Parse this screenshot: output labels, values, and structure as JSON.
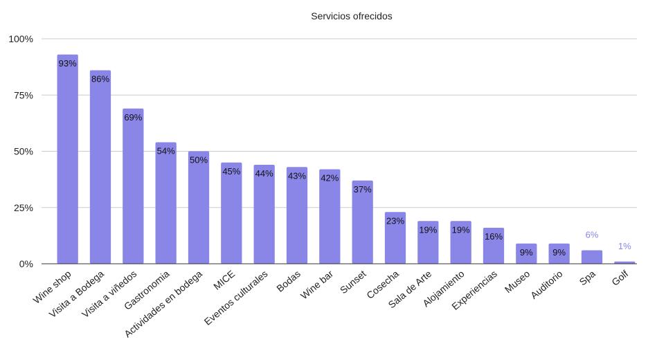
{
  "chart_data": {
    "type": "bar",
    "title": "Servicios ofrecidos",
    "xlabel": "",
    "ylabel": "",
    "categories": [
      "Wine shop",
      "Visita a Bodega",
      "Visita a viñedos",
      "Gastronomia",
      "Actividades en bodega",
      "MICE",
      "Eventos culturales",
      "Bodas",
      "Wine bar",
      "Sunset",
      "Cosecha",
      "Sala de Arte",
      "Alojamiento",
      "Experiencias",
      "Museo",
      "Auditorio",
      "Spa",
      "Golf"
    ],
    "values": [
      93,
      86,
      69,
      54,
      50,
      45,
      44,
      43,
      42,
      37,
      23,
      19,
      19,
      16,
      9,
      9,
      6,
      1
    ],
    "data_labels": [
      "93%",
      "86%",
      "69%",
      "54%",
      "50%",
      "45%",
      "44%",
      "43%",
      "42%",
      "37%",
      "23%",
      "19%",
      "19%",
      "16%",
      "9%",
      "9%",
      "6%",
      "1%"
    ],
    "ylim": [
      0,
      100
    ],
    "yticks": [
      0,
      25,
      50,
      75,
      100
    ],
    "ytick_labels": [
      "0%",
      "25%",
      "50%",
      "75%",
      "100%"
    ],
    "grid": true,
    "legend": "none",
    "bar_color": "#8a86e8"
  }
}
